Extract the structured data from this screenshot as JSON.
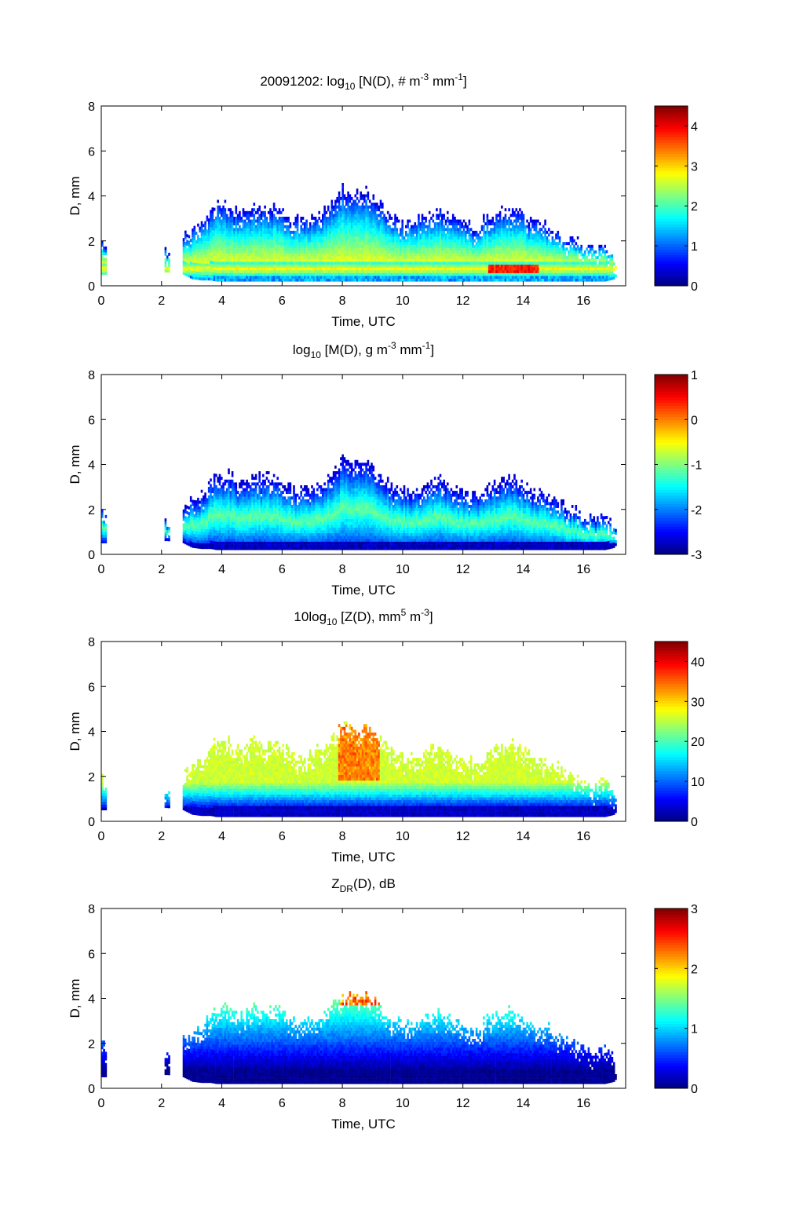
{
  "figure": {
    "date_label": "20091202"
  },
  "chart_data": [
    {
      "type": "heatmap",
      "id": "nd",
      "title": "20091202: log10 [N(D), # m^-3 mm^-1]",
      "title_parts": {
        "pre": "20091202: log",
        "sub": "10",
        "mid1": " [N(D), # m",
        "sup1": "-3",
        "mid2": " mm",
        "sup2": "-1",
        "post": "]"
      },
      "xlabel": "Time, UTC",
      "ylabel": "D, mm",
      "xlim": [
        0,
        17.4
      ],
      "ylim": [
        0,
        8
      ],
      "xticks": [
        0,
        2,
        4,
        6,
        8,
        10,
        12,
        14,
        16
      ],
      "yticks": [
        0,
        2,
        4,
        6,
        8
      ],
      "colormap": "jet",
      "clim": [
        0,
        4.5
      ],
      "colorbar_ticks": [
        0,
        1,
        2,
        3,
        4
      ],
      "peak_region": {
        "time": [
          12.8,
          14.5
        ],
        "D": [
          0.5,
          0.9
        ],
        "value": 4.0
      },
      "core_value": 2.8,
      "edge_value": 0.3
    },
    {
      "type": "heatmap",
      "id": "md",
      "title": "log10 [M(D), g m^-3 mm^-1]",
      "title_parts": {
        "pre": "log",
        "sub": "10",
        "mid1": " [M(D), g m",
        "sup1": "-3",
        "mid2": " mm",
        "sup2": "-1",
        "post": "]"
      },
      "xlabel": "Time, UTC",
      "ylabel": "D, mm",
      "xlim": [
        0,
        17.4
      ],
      "ylim": [
        0,
        8
      ],
      "xticks": [
        0,
        2,
        4,
        6,
        8,
        10,
        12,
        14,
        16
      ],
      "yticks": [
        0,
        2,
        4,
        6,
        8
      ],
      "colormap": "jet",
      "clim": [
        -3,
        1
      ],
      "colorbar_ticks": [
        -3,
        -2,
        -1,
        0,
        1
      ],
      "core_value": -1.1,
      "edge_value": -2.9
    },
    {
      "type": "heatmap",
      "id": "zd",
      "title": "10log10 [Z(D), mm^5 m^-3]",
      "title_parts": {
        "pre": "10log",
        "sub": "10",
        "mid1": " [Z(D),  mm",
        "sup1": "5",
        "mid2": " m",
        "sup2": "-3",
        "post": "]"
      },
      "xlabel": "Time, UTC",
      "ylabel": "D, mm",
      "xlim": [
        0,
        17.4
      ],
      "ylim": [
        0,
        8
      ],
      "xticks": [
        0,
        2,
        4,
        6,
        8,
        10,
        12,
        14,
        16
      ],
      "yticks": [
        0,
        2,
        4,
        6,
        8
      ],
      "colormap": "jet",
      "clim": [
        0,
        45
      ],
      "colorbar_ticks": [
        0,
        10,
        20,
        30,
        40
      ],
      "peak_region": {
        "time": [
          7.8,
          9.2
        ],
        "D": [
          1.8,
          4.2
        ],
        "value": 36
      },
      "core_value": 26,
      "edge_value": 3
    },
    {
      "type": "heatmap",
      "id": "zdr",
      "title": "ZDR(D), dB",
      "title_parts": {
        "pre": "Z",
        "sub": "DR",
        "mid1": "(D), dB",
        "sup1": "",
        "mid2": "",
        "sup2": "",
        "post": ""
      },
      "xlabel": "Time, UTC",
      "ylabel": "D, mm",
      "xlim": [
        0,
        17.4
      ],
      "ylim": [
        0,
        8
      ],
      "xticks": [
        0,
        2,
        4,
        6,
        8,
        10,
        12,
        14,
        16
      ],
      "yticks": [
        0,
        2,
        4,
        6,
        8
      ],
      "colormap": "jet",
      "clim": [
        0,
        3
      ],
      "colorbar_ticks": [
        0,
        1,
        2,
        3
      ],
      "peak_region": {
        "time": [
          7.9,
          9.2
        ],
        "D": [
          3.6,
          4.3
        ],
        "value": 2.6
      },
      "core_value": 0.2,
      "edge_value": 0.1
    }
  ],
  "precip_envelope": {
    "description": "Upper edge of observed drop sizes (D, mm) vs time (UTC); data present between 0 and ~17.1 h with gaps",
    "time": [
      0.0,
      0.1,
      2.1,
      2.2,
      2.7,
      3.0,
      3.3,
      3.6,
      3.8,
      4.2,
      4.6,
      5.0,
      5.4,
      5.8,
      6.2,
      6.6,
      7.0,
      7.4,
      7.8,
      8.0,
      8.4,
      8.8,
      9.2,
      9.6,
      10.0,
      10.4,
      10.8,
      11.2,
      11.6,
      12.0,
      12.4,
      12.8,
      13.2,
      13.6,
      14.0,
      14.4,
      14.8,
      15.2,
      15.6,
      16.0,
      16.4,
      16.7,
      17.0,
      17.1
    ],
    "top_D": [
      1.9,
      1.8,
      1.5,
      1.3,
      2.2,
      2.4,
      2.6,
      3.2,
      3.6,
      3.5,
      3.1,
      3.6,
      3.3,
      3.5,
      3.0,
      2.8,
      3.0,
      3.3,
      3.9,
      4.3,
      4.0,
      4.2,
      3.6,
      3.0,
      2.8,
      2.9,
      3.1,
      3.3,
      3.0,
      2.7,
      2.6,
      3.0,
      3.2,
      3.4,
      3.1,
      2.7,
      2.6,
      2.3,
      2.0,
      1.7,
      1.5,
      1.8,
      1.2,
      0.8
    ],
    "bottom_D": [
      0.5,
      0.5,
      0.6,
      0.6,
      0.5,
      0.3,
      0.25,
      0.25,
      0.2,
      0.2,
      0.2,
      0.2,
      0.2,
      0.2,
      0.2,
      0.2,
      0.2,
      0.2,
      0.2,
      0.2,
      0.2,
      0.2,
      0.2,
      0.2,
      0.2,
      0.2,
      0.2,
      0.2,
      0.2,
      0.2,
      0.2,
      0.2,
      0.2,
      0.2,
      0.2,
      0.2,
      0.2,
      0.2,
      0.2,
      0.2,
      0.2,
      0.2,
      0.3,
      0.5
    ]
  }
}
